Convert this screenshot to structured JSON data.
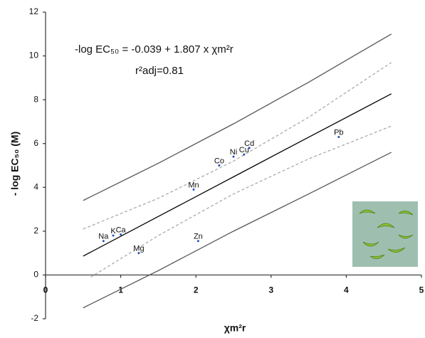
{
  "chart_data": {
    "type": "scatter",
    "annotations": [
      "-log EC₅₀ = -0.039 + 1.807 x χm²r",
      "r²adj=0.81"
    ],
    "xlabel": "χm²r",
    "ylabel": "- log EC₅₀ (M)",
    "xlim": [
      0,
      5
    ],
    "ylim": [
      -2,
      12
    ],
    "xticks": [
      0,
      1,
      2,
      3,
      4,
      5
    ],
    "yticks": [
      -2,
      0,
      2,
      4,
      6,
      8,
      10,
      12
    ],
    "grid": false,
    "lines": [
      {
        "x": [
          0.5,
          1.5,
          2.5,
          3.5,
          4.6
        ],
        "values": [
          0.86,
          2.67,
          4.48,
          6.29,
          8.27
        ],
        "color": "#000000",
        "dash": false
      },
      {
        "x": [
          0.5,
          1.5,
          2.5,
          3.5,
          4.6
        ],
        "values": [
          3.4,
          5.1,
          6.9,
          8.8,
          11.0
        ],
        "color": "#555555",
        "dash": false
      },
      {
        "x": [
          0.5,
          1.5,
          2.5,
          3.5,
          4.6
        ],
        "values": [
          -1.5,
          0.2,
          2.0,
          3.7,
          5.6
        ],
        "color": "#555555",
        "dash": false
      },
      {
        "x": [
          0.5,
          1.5,
          2.5,
          3.5,
          4.6
        ],
        "values": [
          2.1,
          3.5,
          5.2,
          7.2,
          9.7
        ],
        "color": "#aaaaaa",
        "dash": true
      },
      {
        "x": [
          0.6,
          1.5,
          2.5,
          3.5,
          4.6
        ],
        "values": [
          -0.1,
          1.8,
          3.7,
          5.3,
          6.8
        ],
        "color": "#aaaaaa",
        "dash": true
      }
    ],
    "points": [
      {
        "label": "Na",
        "x": 0.77,
        "y": 1.55
      },
      {
        "label": "K",
        "x": 0.9,
        "y": 1.8
      },
      {
        "label": "Ca",
        "x": 1.0,
        "y": 1.85
      },
      {
        "label": "Mg",
        "x": 1.24,
        "y": 1.0
      },
      {
        "label": "Zn",
        "x": 2.03,
        "y": 1.55
      },
      {
        "label": "Mn",
        "x": 1.97,
        "y": 3.9
      },
      {
        "label": "Co",
        "x": 2.31,
        "y": 5.0
      },
      {
        "label": "Ni",
        "x": 2.5,
        "y": 5.4
      },
      {
        "label": "Cu",
        "x": 2.64,
        "y": 5.5
      },
      {
        "label": "Cd",
        "x": 2.71,
        "y": 5.8
      },
      {
        "label": "Pb",
        "x": 3.9,
        "y": 6.3
      }
    ]
  }
}
